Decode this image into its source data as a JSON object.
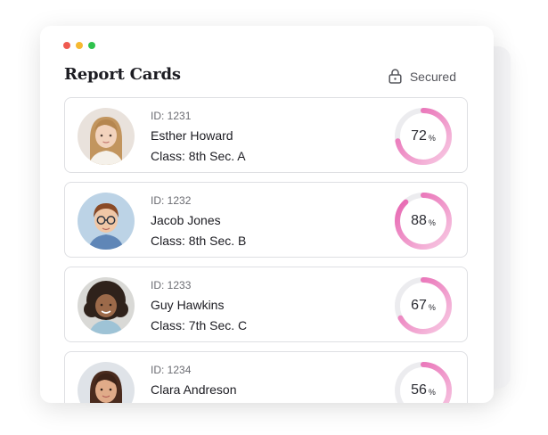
{
  "window": {
    "traffic_lights": [
      "#ef5a50",
      "#f6b931",
      "#2fc24d"
    ]
  },
  "header": {
    "title": "Report Cards",
    "secured_label": "Secured",
    "secured_icon": "lock-icon"
  },
  "colors": {
    "accent": "#e65fae",
    "accent_light": "#f8cbe4",
    "ring_track": "#ececef"
  },
  "students": [
    {
      "id_label": "ID: 1231",
      "name": "Esther Howard",
      "class_label": "Class: 8th Sec. A",
      "score": 72,
      "score_text": "72",
      "unit": "%",
      "avatar": "girl-avatar"
    },
    {
      "id_label": "ID: 1232",
      "name": "Jacob Jones",
      "class_label": "Class: 8th Sec. B",
      "score": 88,
      "score_text": "88",
      "unit": "%",
      "avatar": "boy-glasses-avatar"
    },
    {
      "id_label": "ID: 1233",
      "name": "Guy Hawkins",
      "class_label": "Class: 7th Sec. C",
      "score": 67,
      "score_text": "67",
      "unit": "%",
      "avatar": "girl-curly-avatar"
    },
    {
      "id_label": "ID: 1234",
      "name": "Clara Andreson",
      "class_label": "",
      "score": 56,
      "score_text": "56",
      "unit": "%",
      "avatar": "girl-avatar"
    }
  ]
}
